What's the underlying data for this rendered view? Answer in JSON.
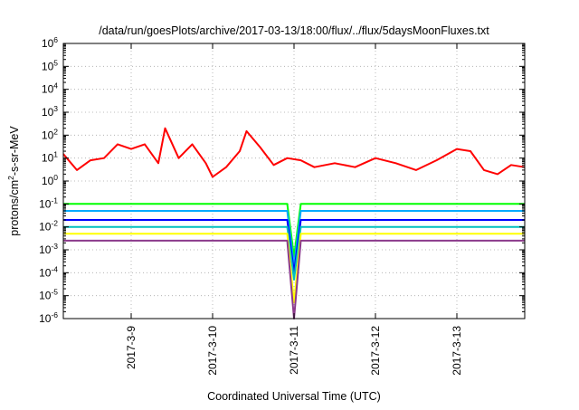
{
  "chart_data": {
    "type": "line",
    "title": "/data/run/goesPlots/archive/2017-03-13/18:00/flux/../flux/5daysMoonFluxes.txt",
    "xlabel": "Coordinated Universal Time (UTC)",
    "ylabel": "protons/cm²-s-sr-MeV",
    "ylabel_parts": {
      "pre": "protons/cm",
      "sup": "2",
      "post": "-s-sr-MeV"
    },
    "yscale": "log",
    "ylim": [
      1e-06,
      1000000.0
    ],
    "y_ticks": [
      {
        "value": 1e-06,
        "base": "10",
        "exp": "-6"
      },
      {
        "value": 1e-05,
        "base": "10",
        "exp": "-5"
      },
      {
        "value": 0.0001,
        "base": "10",
        "exp": "-4"
      },
      {
        "value": 0.001,
        "base": "10",
        "exp": "-3"
      },
      {
        "value": 0.01,
        "base": "10",
        "exp": "-2"
      },
      {
        "value": 0.1,
        "base": "10",
        "exp": "-1"
      },
      {
        "value": 1,
        "base": "10",
        "exp": "0"
      },
      {
        "value": 10,
        "base": "10",
        "exp": "1"
      },
      {
        "value": 100,
        "base": "10",
        "exp": "2"
      },
      {
        "value": 1000,
        "base": "10",
        "exp": "3"
      },
      {
        "value": 10000,
        "base": "10",
        "exp": "4"
      },
      {
        "value": 100000,
        "base": "10",
        "exp": "5"
      },
      {
        "value": 1000000,
        "base": "10",
        "exp": "6"
      }
    ],
    "xlim": [
      "2017-03-08T04:00",
      "2017-03-13T20:00"
    ],
    "x_ticks": [
      "2017-3-9",
      "2017-3-10",
      "2017-3-11",
      "2017-3-12",
      "2017-3-13"
    ],
    "grid": true,
    "series": [
      {
        "color": "#ff0000",
        "x": [
          "2017-03-08T04:00",
          "2017-03-08T08:00",
          "2017-03-08T12:00",
          "2017-03-08T16:00",
          "2017-03-08T20:00",
          "2017-03-09T00:00",
          "2017-03-09T04:00",
          "2017-03-09T08:00",
          "2017-03-09T10:00",
          "2017-03-09T14:00",
          "2017-03-09T18:00",
          "2017-03-09T22:00",
          "2017-03-10T00:00",
          "2017-03-10T04:00",
          "2017-03-10T08:00",
          "2017-03-10T10:00",
          "2017-03-10T14:00",
          "2017-03-10T18:00",
          "2017-03-10T22:00",
          "2017-03-11T02:00",
          "2017-03-11T06:00",
          "2017-03-11T12:00",
          "2017-03-11T18:00",
          "2017-03-12T00:00",
          "2017-03-12T06:00",
          "2017-03-12T12:00",
          "2017-03-12T18:00",
          "2017-03-13T00:00",
          "2017-03-13T04:00",
          "2017-03-13T08:00",
          "2017-03-13T12:00",
          "2017-03-13T16:00",
          "2017-03-13T20:00"
        ],
        "values": [
          15,
          3,
          8,
          10,
          40,
          25,
          40,
          6,
          200,
          10,
          40,
          6,
          1.5,
          4,
          20,
          150,
          30,
          5,
          10,
          8,
          4,
          6,
          4,
          10,
          6,
          3,
          8,
          25,
          20,
          3,
          2,
          5,
          4
        ]
      },
      {
        "color": "#00ff00",
        "x": [
          "2017-03-08T04:00",
          "2017-03-09T00:00",
          "2017-03-10T00:00",
          "2017-03-10T22:00",
          "2017-03-11T00:00",
          "2017-03-11T02:00",
          "2017-03-12T00:00",
          "2017-03-13T00:00",
          "2017-03-13T20:00"
        ],
        "values": [
          0.1,
          0.1,
          0.1,
          0.1,
          0.0005,
          0.1,
          0.1,
          0.1,
          0.1
        ]
      },
      {
        "color": "#00aaff",
        "x": [
          "2017-03-08T04:00",
          "2017-03-09T00:00",
          "2017-03-10T00:00",
          "2017-03-10T22:00",
          "2017-03-11T00:00",
          "2017-03-11T02:00",
          "2017-03-12T00:00",
          "2017-03-13T00:00",
          "2017-03-13T20:00"
        ],
        "values": [
          0.05,
          0.05,
          0.05,
          0.05,
          0.0002,
          0.05,
          0.05,
          0.05,
          0.05
        ]
      },
      {
        "color": "#0000ff",
        "x": [
          "2017-03-08T04:00",
          "2017-03-09T00:00",
          "2017-03-10T00:00",
          "2017-03-10T22:00",
          "2017-03-11T00:00",
          "2017-03-11T02:00",
          "2017-03-12T00:00",
          "2017-03-13T00:00",
          "2017-03-13T20:00"
        ],
        "values": [
          0.02,
          0.02,
          0.02,
          0.02,
          0.0001,
          0.02,
          0.02,
          0.02,
          0.02
        ]
      },
      {
        "color": "#00bfbf",
        "x": [
          "2017-03-08T04:00",
          "2017-03-09T00:00",
          "2017-03-10T00:00",
          "2017-03-10T22:00",
          "2017-03-11T00:00",
          "2017-03-11T02:00",
          "2017-03-12T00:00",
          "2017-03-13T00:00",
          "2017-03-13T20:00"
        ],
        "values": [
          0.01,
          0.01,
          0.01,
          0.01,
          5e-05,
          0.01,
          0.01,
          0.01,
          0.01
        ]
      },
      {
        "color": "#ffff00",
        "x": [
          "2017-03-08T04:00",
          "2017-03-09T00:00",
          "2017-03-10T00:00",
          "2017-03-10T22:00",
          "2017-03-11T00:00",
          "2017-03-11T02:00",
          "2017-03-12T00:00",
          "2017-03-13T00:00",
          "2017-03-13T20:00"
        ],
        "values": [
          0.005,
          0.005,
          0.005,
          0.005,
          5e-06,
          0.005,
          0.005,
          0.005,
          0.005
        ]
      },
      {
        "color": "#8b3a8b",
        "x": [
          "2017-03-08T04:00",
          "2017-03-09T00:00",
          "2017-03-10T00:00",
          "2017-03-10T22:00",
          "2017-03-11T00:00",
          "2017-03-11T02:00",
          "2017-03-12T00:00",
          "2017-03-13T00:00",
          "2017-03-13T20:00"
        ],
        "values": [
          0.0025,
          0.0025,
          0.0025,
          0.0025,
          1e-06,
          0.0025,
          0.0025,
          0.0025,
          0.0025
        ]
      }
    ]
  }
}
